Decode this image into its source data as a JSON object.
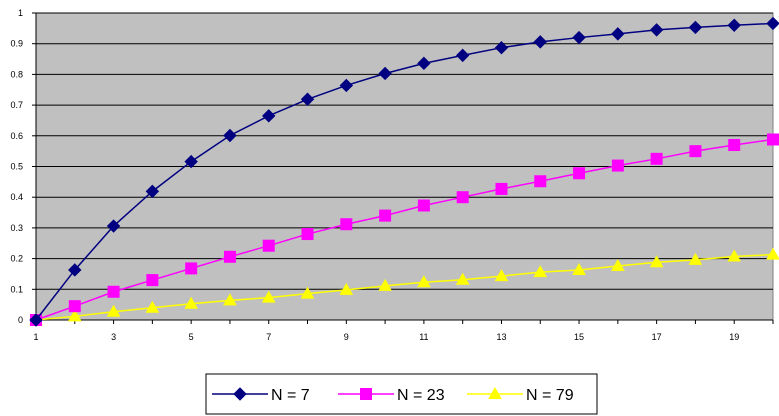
{
  "chart_data": {
    "type": "line",
    "title": "",
    "xlabel": "",
    "ylabel": "",
    "x": [
      1,
      2,
      3,
      4,
      5,
      6,
      7,
      8,
      9,
      10,
      11,
      12,
      13,
      14,
      15,
      16,
      17,
      18,
      19,
      20
    ],
    "xlim": [
      1,
      20
    ],
    "ylim": [
      0,
      1
    ],
    "x_ticks": [
      "1",
      "3",
      "5",
      "7",
      "9",
      "11",
      "13",
      "15",
      "17",
      "19"
    ],
    "y_ticks": [
      "0",
      "0.1",
      "0.2",
      "0.3",
      "0.4",
      "0.5",
      "0.6",
      "0.7",
      "0.8",
      "0.9",
      "1"
    ],
    "grid": "horizontal",
    "plot_background": "#c0c0c0",
    "legend_position": "bottom",
    "series": [
      {
        "name": "N = 7",
        "color": "#000080",
        "marker": "diamond",
        "values": [
          0.0,
          0.163,
          0.306,
          0.419,
          0.516,
          0.601,
          0.665,
          0.719,
          0.764,
          0.803,
          0.836,
          0.862,
          0.887,
          0.906,
          0.92,
          0.932,
          0.945,
          0.953,
          0.96,
          0.966
        ]
      },
      {
        "name": "N = 23",
        "color": "#ff00ff",
        "marker": "square",
        "values": [
          0.0,
          0.045,
          0.092,
          0.13,
          0.168,
          0.206,
          0.242,
          0.28,
          0.312,
          0.34,
          0.373,
          0.4,
          0.427,
          0.452,
          0.478,
          0.503,
          0.525,
          0.55,
          0.57,
          0.588
        ]
      },
      {
        "name": "N = 79",
        "color": "#ffff00",
        "marker": "triangle",
        "values": [
          0.0,
          0.012,
          0.027,
          0.04,
          0.053,
          0.064,
          0.073,
          0.086,
          0.098,
          0.111,
          0.123,
          0.131,
          0.143,
          0.156,
          0.163,
          0.176,
          0.188,
          0.196,
          0.207,
          0.213
        ]
      }
    ]
  }
}
